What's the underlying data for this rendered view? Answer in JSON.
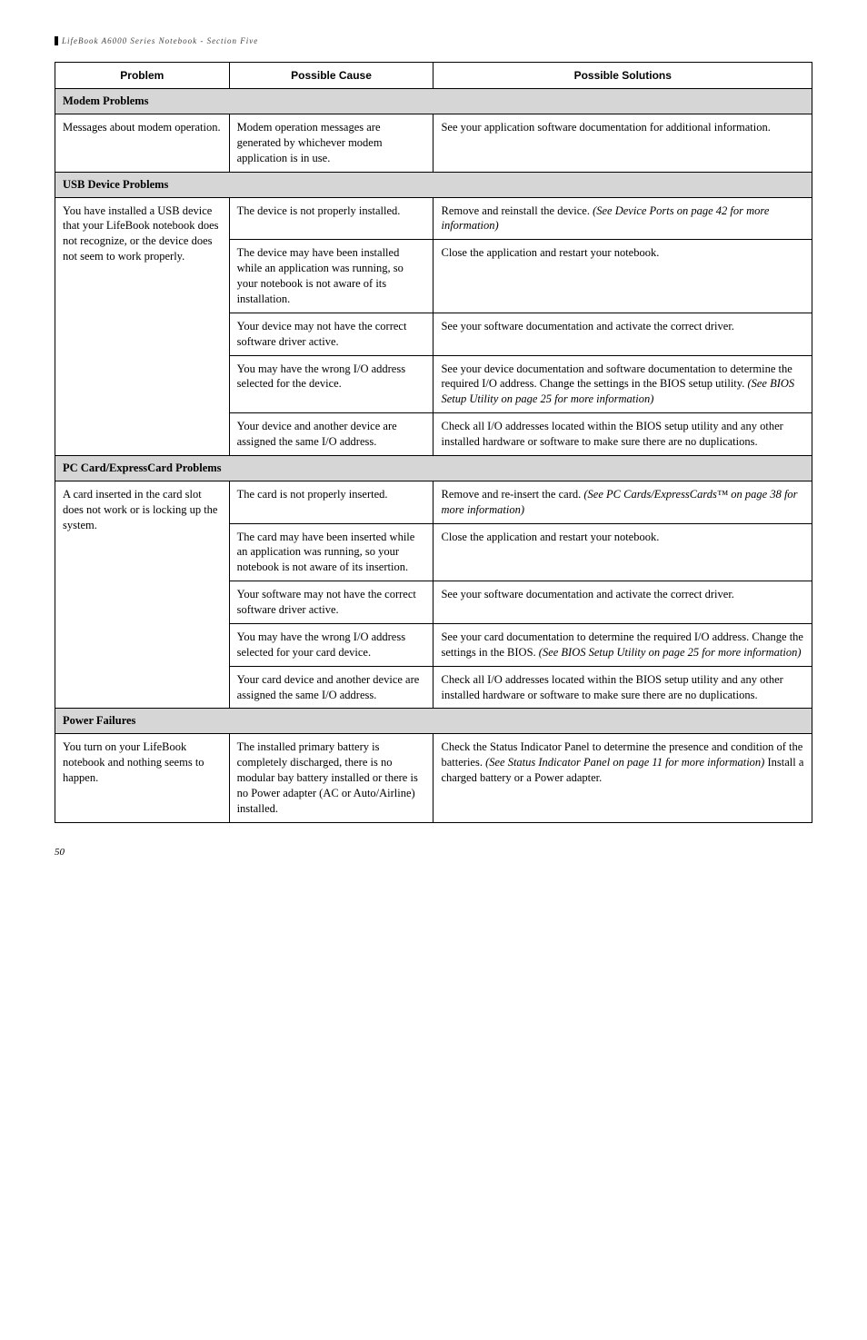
{
  "header": "LifeBook A6000 Series Notebook - Section Five",
  "columns": {
    "problem": "Problem",
    "cause": "Possible Cause",
    "solutions": "Possible Solutions"
  },
  "sections": [
    {
      "title": "Modem Problems",
      "rows": [
        {
          "problem": "Messages about modem operation.",
          "cause": "Modem operation messages are generated by whichever modem application is in use.",
          "solution": "See your application software documentation for additional information."
        }
      ]
    },
    {
      "title": "USB Device Problems",
      "rows": [
        {
          "problem": "You have installed a USB device that your LifeBook notebook does not recognize, or the device does not seem to work properly.",
          "problem_rowspan": 5,
          "cause": "The device is not properly installed.",
          "solution_html": "Remove and reinstall the device. <span class=\"ital\">(See Device Ports on page 42 for more information)</span>"
        },
        {
          "cause": "The device may have been installed while an application was running, so your notebook is not aware of its installation.",
          "solution": "Close the application and restart your notebook."
        },
        {
          "cause": "Your device may not have the correct software driver active.",
          "solution": "See your software documentation and activate the correct driver."
        },
        {
          "cause": "You may have the wrong I/O address selected for the device.",
          "solution_html": "See your device documentation and software documentation to determine the required I/O address. Change the settings in the BIOS setup utility. <span class=\"ital\">(See BIOS Setup Utility on page 25 for more information)</span>"
        },
        {
          "cause": "Your device and another device are assigned the same I/O address.",
          "solution": "Check all I/O addresses located within the BIOS setup utility and any other installed hardware or software to make sure there are no duplications."
        }
      ]
    },
    {
      "title": "PC Card/ExpressCard Problems",
      "rows": [
        {
          "problem": "A card inserted in the card slot does not work or is locking up the system.",
          "problem_rowspan": 5,
          "cause": "The card is not properly inserted.",
          "solution_html": "Remove and re-insert the card. <span class=\"ital\">(See PC Cards/ExpressCards™ on page 38 for more information)</span>"
        },
        {
          "cause": "The card may have been inserted while an application was running, so your notebook is not aware of its insertion.",
          "solution": "Close the application and restart your notebook."
        },
        {
          "cause": "Your software may not have the correct software driver active.",
          "solution": "See your software documentation and activate the correct driver."
        },
        {
          "cause": "You may have the wrong I/O address selected for your card device.",
          "solution_html": "See your card documentation to determine the required I/O address. Change the settings in the BIOS. <span class=\"ital\">(See BIOS Setup Utility on page 25 for more information)</span>"
        },
        {
          "cause": "Your card device and another device are assigned the same I/O address.",
          "solution": "Check all I/O addresses located within the BIOS setup utility and any other installed hardware or software to make sure there are no duplications."
        }
      ]
    },
    {
      "title": "Power Failures",
      "rows": [
        {
          "problem": "You turn on your LifeBook notebook and nothing seems to happen.",
          "cause": "The installed primary battery is completely discharged, there is no modular bay battery installed or there is no Power adapter (AC or Auto/Airline) installed.",
          "solution_html": "Check the Status Indicator Panel to determine the presence and condition of the batteries. <span class=\"ital\">(See Status Indicator Panel on page 11 for more information)</span> Install a charged battery or a Power adapter."
        }
      ]
    }
  ],
  "page_number": "50"
}
